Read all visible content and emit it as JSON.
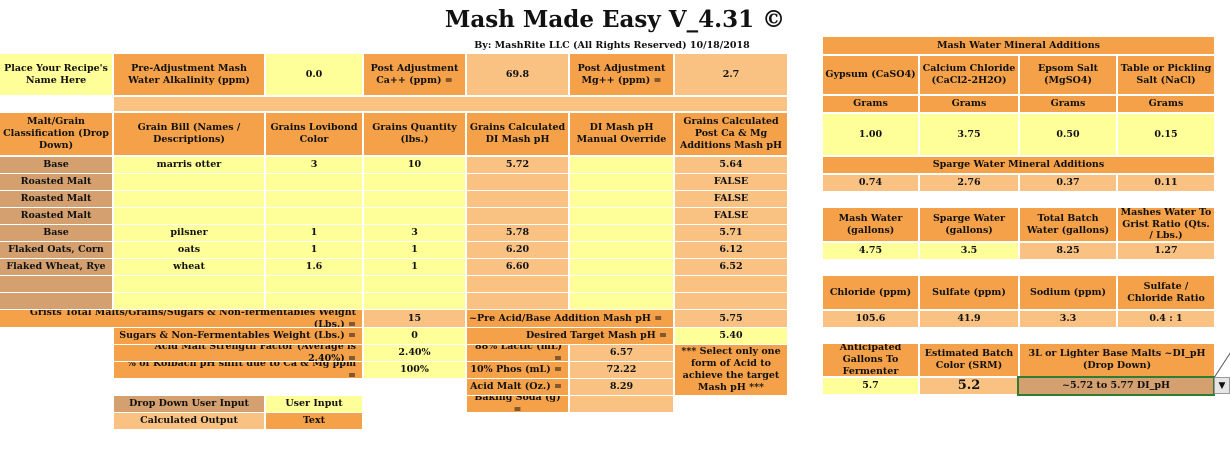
{
  "header": {
    "title": "Mash Made Easy V_4.31 ©",
    "byline": "By: MashRite LLC (All Rights Reserved) 10/18/2018"
  },
  "top_row": {
    "recipe_name": "Place Your Recipe's Name Here",
    "alkalinity_label": "Pre-Adjustment Mash Water Alkalinity (ppm)",
    "alkalinity_value": "0.0",
    "ca_label": "Post Adjustment Ca++ (ppm)  =",
    "ca_value": "69.8",
    "mg_label": "Post Adjustment Mg++ (ppm)  =",
    "mg_value": "2.7"
  },
  "grain_table": {
    "headers": [
      "Malt/Grain Classification (Drop Down)",
      "Grain Bill (Names / Descriptions)",
      "Grains Lovibond Color",
      "Grains Quantity (lbs.)",
      "Grains Calculated DI Mash pH",
      "DI Mash pH Manual Override",
      "Grains Calculated Post Ca & Mg Additions Mash pH"
    ],
    "rows": [
      {
        "cls": "Base",
        "name": "marris otter",
        "lov": "3",
        "qty": "10",
        "di": "5.72",
        "ovr": "",
        "post": "5.64"
      },
      {
        "cls": "Roasted Malt",
        "name": "",
        "lov": "",
        "qty": "",
        "di": "",
        "ovr": "",
        "post": "FALSE"
      },
      {
        "cls": "Roasted Malt",
        "name": "",
        "lov": "",
        "qty": "",
        "di": "",
        "ovr": "",
        "post": "FALSE"
      },
      {
        "cls": "Roasted Malt",
        "name": "",
        "lov": "",
        "qty": "",
        "di": "",
        "ovr": "",
        "post": "FALSE"
      },
      {
        "cls": "Base",
        "name": "pilsner",
        "lov": "1",
        "qty": "3",
        "di": "5.78",
        "ovr": "",
        "post": "5.71"
      },
      {
        "cls": "Flaked Oats, Corn",
        "name": "oats",
        "lov": "1",
        "qty": "1",
        "di": "6.20",
        "ovr": "",
        "post": "6.12"
      },
      {
        "cls": "Flaked Wheat, Rye",
        "name": "wheat",
        "lov": "1.6",
        "qty": "1",
        "di": "6.60",
        "ovr": "",
        "post": "6.52"
      },
      {
        "cls": "",
        "name": "",
        "lov": "",
        "qty": "",
        "di": "",
        "ovr": "",
        "post": ""
      },
      {
        "cls": "",
        "name": "",
        "lov": "",
        "qty": "",
        "di": "",
        "ovr": "",
        "post": ""
      }
    ]
  },
  "totals": {
    "weight_label": "Grists Total Malts/Grains/Sugars & Non-fermentables Weight (Lbs.) =",
    "weight_value": "15",
    "pre_acid_label": "~Pre Acid/Base Addition Mash pH =",
    "pre_acid_value": "5.75",
    "sugars_label": "Sugars & Non-Fermentables Weight (Lbs.) =",
    "sugars_value": "0",
    "target_label": "Desired Target Mash pH =",
    "target_value": "5.40",
    "acid_strength_label": "Acid Malt Strength Factor (Average is 2.40%) =",
    "acid_strength_value": "2.40%",
    "kolbach_label": "% of Kolbach pH shift due to Ca & Mg ppm =",
    "kolbach_value": "100%"
  },
  "acids": {
    "lactic_label": "88%  Lactic (mL) =",
    "lactic_value": "6.57",
    "phos_label": "10%  Phos  (mL) =",
    "phos_value": "72.22",
    "acid_malt_label": "Acid Malt (Oz.) =",
    "acid_malt_value": "8.29",
    "soda_label": "Baking Soda (g) =",
    "soda_value": "",
    "note": "*** Select only one form of Acid to achieve the target Mash pH ***"
  },
  "legend": {
    "dropdown": "Drop Down User Input",
    "user_input": "User Input",
    "calculated": "Calculated Output",
    "text": "Text"
  },
  "mash_minerals": {
    "title": "Mash Water Mineral Additions",
    "headers": [
      "Gypsum (CaSO4)",
      "Calcium Chloride (CaCl2-2H2O)",
      "Epsom Salt (MgSO4)",
      "Table or Pickling Salt (NaCl)"
    ],
    "units": [
      "Grams",
      "Grams",
      "Grams",
      "Grams"
    ],
    "values": [
      "1.00",
      "3.75",
      "0.50",
      "0.15"
    ]
  },
  "sparge_minerals": {
    "title": "Sparge Water Mineral Additions",
    "values": [
      "0.74",
      "2.76",
      "0.37",
      "0.11"
    ]
  },
  "water": {
    "headers": [
      "Mash Water (gallons)",
      "Sparge Water (gallons)",
      "Total Batch Water (gallons)",
      "Mashes Water To Grist Ratio (Qts. / Lbs.)"
    ],
    "values": [
      "4.75",
      "3.5",
      "8.25",
      "1.27"
    ]
  },
  "ions": {
    "headers": [
      "Chloride (ppm)",
      "Sulfate (ppm)",
      "Sodium (ppm)",
      "Sulfate / Chloride Ratio"
    ],
    "values": [
      "105.6",
      "41.9",
      "3.3",
      "0.4 : 1"
    ]
  },
  "batch": {
    "gallons_label": "Anticipated Gallons To Fermenter",
    "gallons_value": "5.7",
    "color_label": "Estimated Batch Color (SRM)",
    "color_value": "5.2",
    "base_malt_label": "3L or Lighter Base Malts ~DI_pH (Drop Down)",
    "base_malt_value": "~5.72 to 5.77 DI_pH",
    "dropdown_glyph": "▼"
  }
}
